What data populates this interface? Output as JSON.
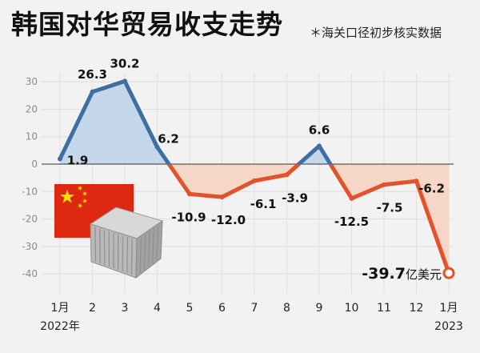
{
  "title": "韩国对华贸易收支走势",
  "note": "＊海关口径初步核实数据",
  "colors": {
    "positive": "#3e6fa3",
    "positive_fill": "#c5d7ea",
    "negative": "#e2522b",
    "negative_fill": "#f6d6c6",
    "flag_red": "#de2910",
    "flag_star": "#ffde00"
  },
  "chart_data": {
    "type": "line",
    "title": "韩国对华贸易收支走势",
    "xlabel": "",
    "ylabel": "",
    "categories": [
      "1月",
      "2",
      "3",
      "4",
      "5",
      "6",
      "7",
      "8",
      "9",
      "10",
      "11",
      "12",
      "1月"
    ],
    "category_years": [
      "2022年",
      "",
      "",
      "",
      "",
      "",
      "",
      "",
      "",
      "",
      "",
      "",
      "2023"
    ],
    "values": [
      1.9,
      26.3,
      30.2,
      6.2,
      -10.9,
      -12.0,
      -6.1,
      -3.9,
      6.6,
      -12.5,
      -7.5,
      -6.2,
      -39.7
    ],
    "labels": [
      "1.9",
      "26.3",
      "30.2",
      "6.2",
      "-10.9",
      "-12.0",
      "-6.1",
      "-3.9",
      "6.6",
      "-12.5",
      "-7.5",
      "-6.2",
      "-39.7"
    ],
    "last_unit": "亿美元",
    "ylim": [
      -45,
      35
    ],
    "yticks": [
      30,
      20,
      10,
      0,
      -10,
      -20,
      -30,
      -40
    ],
    "grid": true,
    "legend": "none"
  }
}
